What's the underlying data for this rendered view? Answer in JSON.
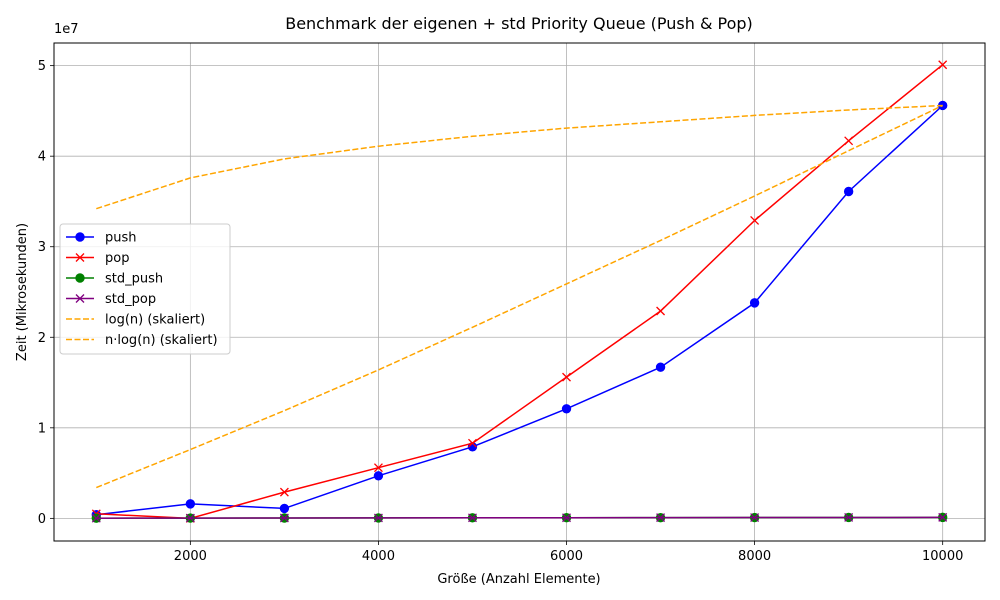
{
  "chart_data": {
    "type": "line",
    "title": "Benchmark der eigenen + std Priority Queue (Push & Pop)",
    "xlabel": "Größe (Anzahl Elemente)",
    "ylabel": "Zeit (Mikrosekunden)",
    "y_offset_label": "1e7",
    "xlim": [
      550,
      10450
    ],
    "ylim": [
      -2500000,
      52500000
    ],
    "xticks": [
      2000,
      4000,
      6000,
      8000,
      10000
    ],
    "yticks": [
      0,
      10000000,
      20000000,
      30000000,
      40000000,
      50000000
    ],
    "ytick_labels": [
      "0",
      "1",
      "2",
      "3",
      "4",
      "5"
    ],
    "grid": true,
    "legend_position": "center-left",
    "x": [
      1000,
      2000,
      3000,
      4000,
      5000,
      6000,
      7000,
      8000,
      9000,
      10000
    ],
    "series": [
      {
        "name": "push",
        "color": "#0000ff",
        "marker": "circle",
        "dash": "solid",
        "values": [
          400000,
          1600000,
          1100000,
          4700000,
          7900000,
          12100000,
          16700000,
          23800000,
          36100000,
          45600000
        ]
      },
      {
        "name": "pop",
        "color": "#ff0000",
        "marker": "x",
        "dash": "solid",
        "values": [
          500000,
          0,
          2900000,
          5600000,
          8300000,
          15600000,
          22900000,
          32900000,
          41700000,
          50100000
        ]
      },
      {
        "name": "std_push",
        "color": "#008000",
        "marker": "circle",
        "dash": "solid",
        "values": [
          20000,
          30000,
          40000,
          50000,
          60000,
          70000,
          80000,
          90000,
          100000,
          110000
        ]
      },
      {
        "name": "std_pop",
        "color": "#800080",
        "marker": "x",
        "dash": "solid",
        "values": [
          20000,
          30000,
          40000,
          50000,
          60000,
          70000,
          80000,
          90000,
          100000,
          110000
        ]
      },
      {
        "name": "log(n) (skaliert)",
        "color": "#ffa500",
        "marker": "none",
        "dash": "dashed",
        "values": [
          34200000,
          37600000,
          39700000,
          41100000,
          42200000,
          43100000,
          43800000,
          44500000,
          45100000,
          45600000
        ]
      },
      {
        "name": "n·log(n) (skaliert)",
        "color": "#ffa500",
        "marker": "none",
        "dash": "dashed",
        "values": [
          3400000,
          7600000,
          11900000,
          16400000,
          21100000,
          25900000,
          30700000,
          35600000,
          40600000,
          45600000
        ]
      }
    ]
  }
}
